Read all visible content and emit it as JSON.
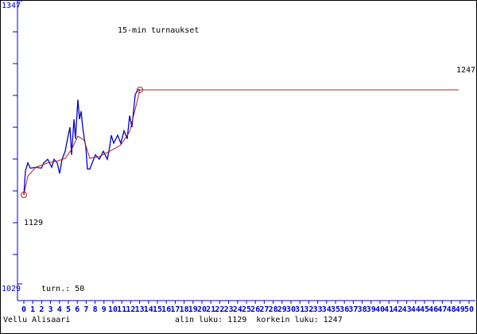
{
  "chart_data": {
    "type": "line",
    "title": "15-min turnaukset",
    "xlim": [
      0,
      50
    ],
    "xticks": [
      0,
      1,
      2,
      3,
      4,
      5,
      6,
      7,
      8,
      9,
      10,
      11,
      12,
      13,
      14,
      15,
      16,
      17,
      18,
      19,
      20,
      21,
      22,
      23,
      24,
      25,
      26,
      27,
      28,
      29,
      30,
      31,
      32,
      33,
      34,
      35,
      36,
      37,
      38,
      39,
      40,
      41,
      42,
      43,
      44,
      45,
      46,
      47,
      48,
      49,
      50
    ],
    "ylim": [
      1029,
      1347
    ],
    "yticks": [
      1029,
      1347
    ],
    "count_label": "turn.: 50",
    "min_label": "1129",
    "max_label": "1247",
    "author": "Vellu Alisaari",
    "stats": "alin luku: 1129  korkein luku: 1247",
    "series": [
      {
        "color": "#0000cc",
        "x": [
          0,
          0.18,
          0.45,
          0.71,
          1.34,
          1.96,
          2.23,
          2.68,
          3.13,
          3.39,
          3.75,
          4.02,
          4.29,
          4.64,
          4.91,
          5.18,
          5.36,
          5.63,
          5.8,
          6.07,
          6.25,
          6.43,
          6.61,
          6.79,
          6.96,
          7.14,
          7.41,
          7.68,
          8.04,
          8.48,
          8.93,
          9.38,
          9.64,
          9.82,
          10.09,
          10.54,
          10.89,
          11.25,
          11.61,
          11.88,
          12.14,
          12.5,
          12.77,
          13.04
        ],
        "values": [
          1129,
          1156,
          1165,
          1159,
          1160,
          1159,
          1165,
          1169,
          1160,
          1169,
          1165,
          1153,
          1169,
          1178,
          1192,
          1205,
          1174,
          1214,
          1192,
          1236,
          1214,
          1223,
          1205,
          1192,
          1183,
          1158,
          1158,
          1165,
          1174,
          1169,
          1178,
          1169,
          1183,
          1196,
          1187,
          1196,
          1187,
          1201,
          1192,
          1218,
          1205,
          1241,
          1247,
          1247
        ]
      },
      {
        "color": "#b22222",
        "x": [
          0,
          0.45,
          1.34,
          2.68,
          3.75,
          4.64,
          5.36,
          6.07,
          6.79,
          7.41,
          8.48,
          9.64,
          10.89,
          11.88,
          12.5,
          13.04,
          48.84
        ],
        "values": [
          1129,
          1150,
          1160,
          1165,
          1167,
          1170,
          1180,
          1195,
          1190,
          1170,
          1172,
          1178,
          1185,
          1200,
          1225,
          1247,
          1247
        ]
      }
    ]
  }
}
